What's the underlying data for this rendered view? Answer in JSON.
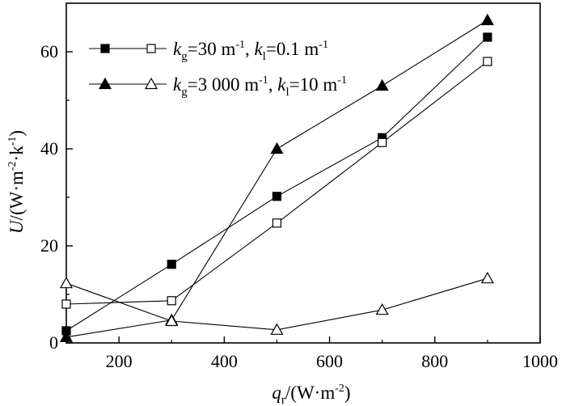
{
  "chart_data": {
    "type": "line",
    "xlabel": {
      "var": "q",
      "sub": "r",
      "unit_pre": "/(W·m",
      "unit_sup": "-2",
      "unit_post": ")"
    },
    "ylabel": {
      "var": "U",
      "unit_pre": "/(W·m",
      "unit_sup1": "-2",
      "unit_mid": "·k",
      "unit_sup2": "-1",
      "unit_post": ")"
    },
    "xlim": [
      100,
      1000
    ],
    "ylim": [
      0,
      70
    ],
    "x_ticks": [
      200,
      400,
      600,
      800,
      1000
    ],
    "x_tick_labels": [
      "200",
      "400",
      "600",
      "800",
      "1000"
    ],
    "y_ticks": [
      0,
      20,
      40,
      60
    ],
    "y_tick_labels": [
      "0",
      "20",
      "40",
      "60"
    ],
    "grid": false,
    "legend_position": "top-left",
    "legend": [
      {
        "markers": [
          "filled-square",
          "open-square"
        ],
        "k_var": "k",
        "g_sub": "g",
        "g_value": "=30 m",
        "g_sup": "-1",
        "sep": ", ",
        "l_sub": "l",
        "l_value": "=0.1 m",
        "l_sup": "-1"
      },
      {
        "markers": [
          "filled-triangle",
          "open-triangle"
        ],
        "k_var": "k",
        "g_sub": "g",
        "g_value": "=3 000 m",
        "g_sup": "-1",
        "sep": ", ",
        "l_sub": "l",
        "l_value": "=10 m",
        "l_sup": "-1"
      }
    ],
    "series": [
      {
        "marker": "filled-square",
        "x": [
          100,
          300,
          500,
          700,
          900
        ],
        "y": [
          2.5,
          16.2,
          30.2,
          42.3,
          63.0
        ]
      },
      {
        "marker": "open-square",
        "x": [
          100,
          300,
          500,
          700,
          900
        ],
        "y": [
          8.0,
          8.7,
          24.7,
          41.3,
          58.0
        ]
      },
      {
        "marker": "filled-triangle",
        "x": [
          100,
          300,
          500,
          700,
          900
        ],
        "y": [
          1.2,
          4.7,
          40.0,
          53.0,
          66.5
        ]
      },
      {
        "marker": "open-triangle",
        "x": [
          100,
          300,
          500,
          700,
          900
        ],
        "y": [
          12.3,
          4.5,
          2.7,
          6.8,
          13.3
        ]
      }
    ]
  }
}
